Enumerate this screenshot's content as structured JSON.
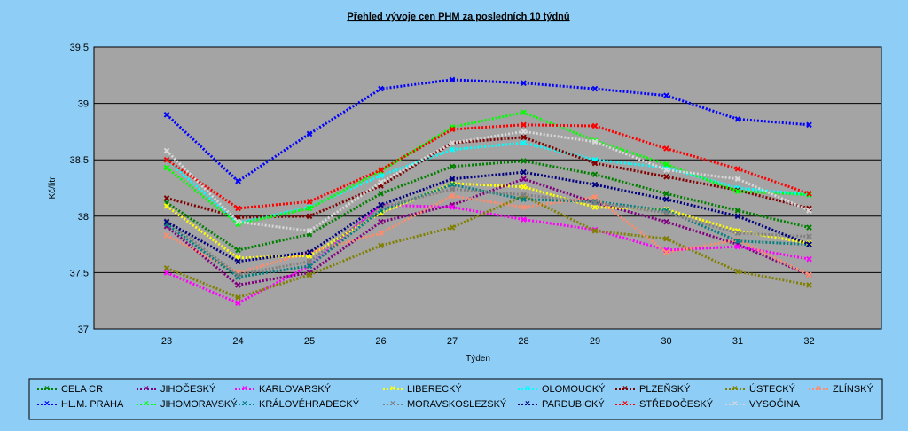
{
  "chart_data": {
    "type": "line",
    "title": "Přehled vývoje cen PHM za posledních 10 týdnů",
    "xlabel": "Týden",
    "ylabel": "Kč/litr",
    "ylim": [
      37,
      39.5
    ],
    "yticks": [
      "37",
      "37.5",
      "38",
      "38.5",
      "39",
      "39.5"
    ],
    "grid": true,
    "legend_position": "bottom",
    "categories": [
      "23",
      "24",
      "25",
      "26",
      "27",
      "28",
      "29",
      "30",
      "31",
      "32"
    ],
    "series": [
      {
        "name": "CELA CR",
        "color": "#008000",
        "values": [
          38.12,
          37.7,
          37.84,
          38.2,
          38.44,
          38.49,
          38.37,
          38.2,
          38.05,
          37.9
        ]
      },
      {
        "name": "JIHOČESKÝ",
        "color": "#800080",
        "values": [
          37.91,
          37.39,
          37.5,
          37.95,
          38.1,
          38.33,
          38.12,
          37.95,
          37.75,
          37.48
        ]
      },
      {
        "name": "KARLOVARSKÝ",
        "color": "#ff00ff",
        "values": [
          37.5,
          37.23,
          37.56,
          38.1,
          38.08,
          37.97,
          37.88,
          37.7,
          37.73,
          37.62
        ]
      },
      {
        "name": "LIBERECKÝ",
        "color": "#ffff00",
        "values": [
          38.09,
          37.63,
          37.65,
          38.03,
          38.29,
          38.26,
          38.08,
          38.06,
          37.87,
          37.76
        ]
      },
      {
        "name": "OLOMOUCKÝ",
        "color": "#00ffff",
        "values": [
          38.5,
          37.94,
          38.08,
          38.36,
          38.59,
          38.65,
          38.5,
          38.43,
          38.25,
          38.19
        ]
      },
      {
        "name": "PLZEŇSKÝ",
        "color": "#800000",
        "values": [
          38.16,
          37.99,
          38.0,
          38.27,
          38.65,
          38.7,
          38.47,
          38.35,
          38.23,
          38.07
        ]
      },
      {
        "name": "ÚSTECKÝ",
        "color": "#808000",
        "values": [
          37.54,
          37.28,
          37.48,
          37.74,
          37.9,
          38.18,
          37.87,
          37.8,
          37.51,
          37.39
        ]
      },
      {
        "name": "ZLÍNSKÝ",
        "color": "#ff8c6b",
        "values": [
          37.83,
          37.5,
          37.68,
          37.85,
          38.18,
          38.08,
          38.17,
          37.68,
          37.79,
          37.48
        ]
      },
      {
        "name": "HL.M. PRAHA",
        "color": "#0000ff",
        "values": [
          38.9,
          38.31,
          38.73,
          39.13,
          39.21,
          39.18,
          39.13,
          39.07,
          38.86,
          38.81
        ]
      },
      {
        "name": "JIHOMORAVSKÝ",
        "color": "#00ff00",
        "values": [
          38.43,
          37.93,
          38.07,
          38.4,
          38.79,
          38.92,
          38.67,
          38.46,
          38.22,
          38.19
        ]
      },
      {
        "name": "KRÁLOVÉHRADECKÝ",
        "color": "#008080",
        "values": [
          37.93,
          37.46,
          37.56,
          38.05,
          38.28,
          38.15,
          38.13,
          38.05,
          37.78,
          37.75
        ]
      },
      {
        "name": "MORAVSKOSLEZSKÝ",
        "color": "#808080",
        "values": [
          37.96,
          37.48,
          37.6,
          38.08,
          38.24,
          38.19,
          38.12,
          38.03,
          37.85,
          37.82
        ]
      },
      {
        "name": "PARDUBICKÝ",
        "color": "#000080",
        "values": [
          37.95,
          37.6,
          37.68,
          38.1,
          38.33,
          38.39,
          38.28,
          38.15,
          38.0,
          37.75
        ]
      },
      {
        "name": "STŘEDOČESKÝ",
        "color": "#ff0000",
        "values": [
          38.5,
          38.07,
          38.13,
          38.41,
          38.77,
          38.81,
          38.8,
          38.6,
          38.42,
          38.2
        ]
      },
      {
        "name": "VYSOČINA",
        "color": "#d8d8d8",
        "values": [
          38.58,
          37.95,
          37.87,
          38.3,
          38.65,
          38.75,
          38.66,
          38.41,
          38.33,
          38.05
        ]
      }
    ]
  }
}
